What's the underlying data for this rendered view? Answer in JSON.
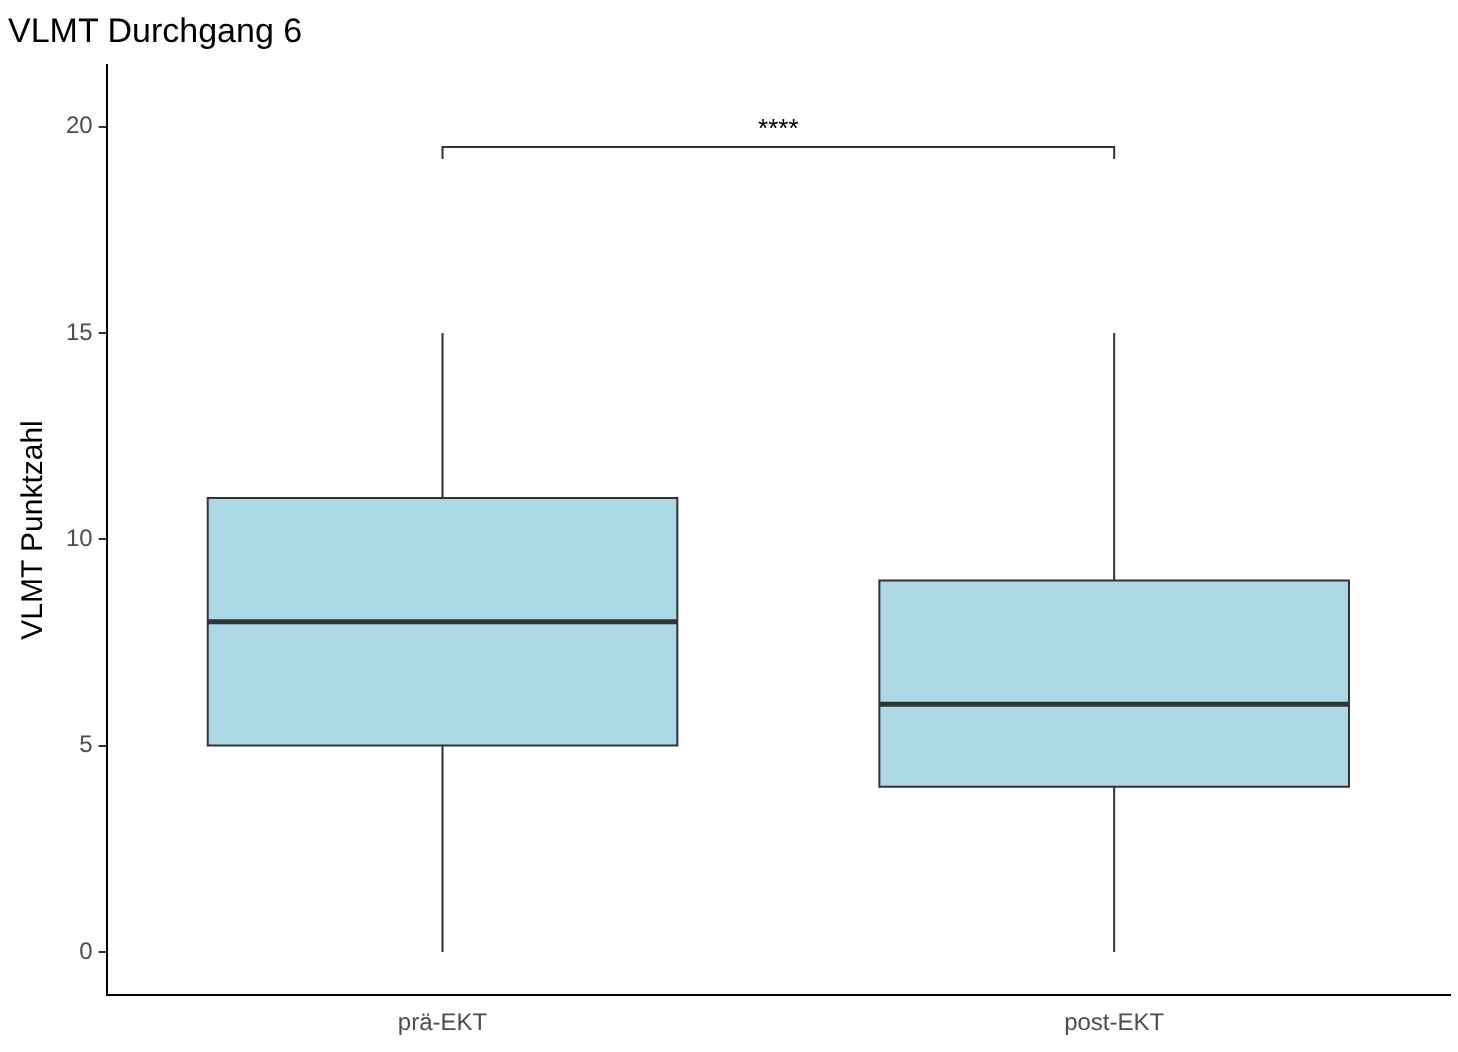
{
  "chart_data": {
    "type": "box",
    "title": "VLMT Durchgang 6",
    "ylabel": "VLMT Punktzahl",
    "categories": [
      "prä-EKT",
      "post-EKT"
    ],
    "boxes": [
      {
        "low": 0,
        "q1": 5,
        "median": 8,
        "q3": 11,
        "high": 15
      },
      {
        "low": 0,
        "q1": 4,
        "median": 6,
        "q3": 9,
        "high": 15
      }
    ],
    "color": "#add8e6",
    "ylim": [
      -1.05,
      21.5
    ],
    "yticks": [
      0,
      5,
      10,
      15,
      20
    ],
    "grid": false,
    "legend": false,
    "annotations": [
      "****"
    ]
  }
}
